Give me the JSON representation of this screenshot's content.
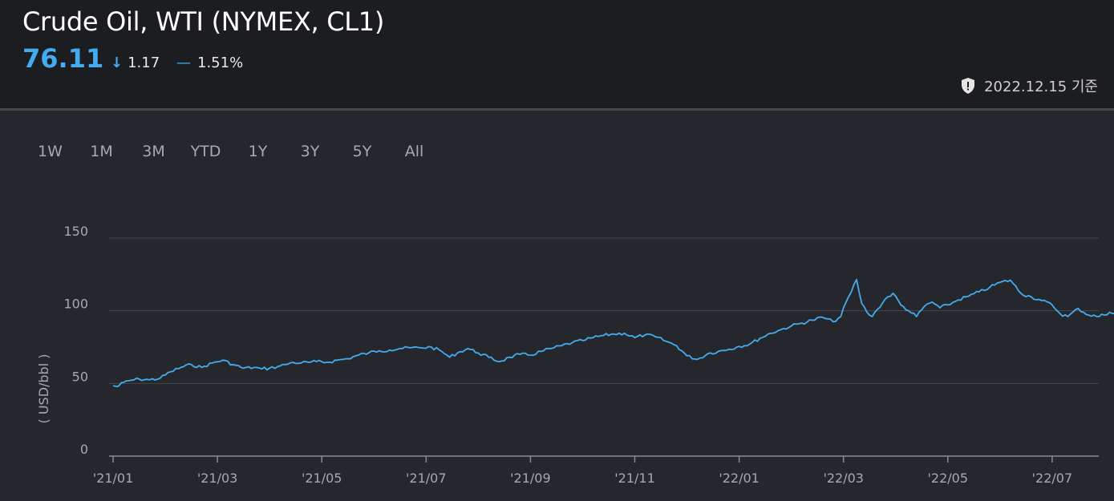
{
  "header": {
    "title": "Crude Oil, WTI (NYMEX, CL1)",
    "price": "76.11",
    "change_abs": "1.17",
    "change_pct": "1.51%",
    "as_of": "2022.12.15 기준",
    "accent_color": "#45abf0"
  },
  "ranges": [
    "1W",
    "1M",
    "3M",
    "YTD",
    "1Y",
    "3Y",
    "5Y",
    "All"
  ],
  "chart_data": {
    "type": "line",
    "ylabel": "( USD/bbl )",
    "ylim": [
      0,
      150
    ],
    "yticks": [
      0,
      50,
      100,
      150
    ],
    "xlim": [
      0,
      19.55
    ],
    "xticks": [
      {
        "label": "'21/01",
        "x": 0
      },
      {
        "label": "'21/03",
        "x": 2
      },
      {
        "label": "'21/05",
        "x": 4
      },
      {
        "label": "'21/07",
        "x": 6
      },
      {
        "label": "'21/09",
        "x": 8
      },
      {
        "label": "'21/11",
        "x": 10
      },
      {
        "label": "'22/01",
        "x": 12
      },
      {
        "label": "'22/03",
        "x": 14
      },
      {
        "label": "'22/05",
        "x": 16
      },
      {
        "label": "'22/07",
        "x": 18
      }
    ],
    "grid": true,
    "series": [
      {
        "color": "#45abf0",
        "x": [
          0,
          0.08,
          0.2,
          0.35,
          0.5,
          0.7,
          0.9,
          1.1,
          1.3,
          1.5,
          1.7,
          1.9,
          2.1,
          2.3,
          2.5,
          2.7,
          2.85,
          3.0,
          3.15,
          3.3,
          3.45,
          3.6,
          3.75,
          3.9,
          4.1,
          4.3,
          4.5,
          4.7,
          4.9,
          5.1,
          5.3,
          5.5,
          5.7,
          5.9,
          6.1,
          6.3,
          6.45,
          6.6,
          6.8,
          7.0,
          7.2,
          7.4,
          7.6,
          7.8,
          8.0,
          8.2,
          8.4,
          8.6,
          8.8,
          9.0,
          9.2,
          9.4,
          9.6,
          9.8,
          10.0,
          10.2,
          10.4,
          10.6,
          10.8,
          11.0,
          11.2,
          11.4,
          11.6,
          11.8,
          12.0,
          12.2,
          12.4,
          12.6,
          12.8,
          13.0,
          13.2,
          13.4,
          13.6,
          13.8,
          13.95,
          14.05,
          14.15,
          14.25,
          14.35,
          14.45,
          14.55,
          14.65,
          14.8,
          14.95,
          15.1,
          15.25,
          15.4,
          15.55,
          15.7,
          15.85,
          16.0,
          16.2,
          16.4,
          16.6,
          16.8,
          17.0,
          17.2,
          17.4,
          17.6,
          17.8,
          18.0,
          18.15,
          18.3,
          18.5,
          18.7,
          18.9,
          19.1,
          19.3,
          19.45,
          19.55
        ],
        "y": [
          48.4,
          47.8,
          50.7,
          52.2,
          53.0,
          52.5,
          53.5,
          58.0,
          61.0,
          63.0,
          61.0,
          64.0,
          66.0,
          63.0,
          60.5,
          61.0,
          60.0,
          60.5,
          61.5,
          63.0,
          64.5,
          64.0,
          64.5,
          65.0,
          64.5,
          66.0,
          67.0,
          69.5,
          71.0,
          72.5,
          73.0,
          74.0,
          74.5,
          74.5,
          75.0,
          72.0,
          68.0,
          71.0,
          74.0,
          71.0,
          68.0,
          65.0,
          68.0,
          70.0,
          69.5,
          72.0,
          74.0,
          76.0,
          78.0,
          79.5,
          81.5,
          83.0,
          84.0,
          84.5,
          81.5,
          83.5,
          82.0,
          79.0,
          76.0,
          69.0,
          66.5,
          70.5,
          72.0,
          73.5,
          75.5,
          77.0,
          81.0,
          84.5,
          87.0,
          89.5,
          91.5,
          93.5,
          95.5,
          92.5,
          96.0,
          106.0,
          113.0,
          121.5,
          105.0,
          99.0,
          96.0,
          101.0,
          108.0,
          112.0,
          104.0,
          100.0,
          96.0,
          103.0,
          106.0,
          102.0,
          104.0,
          107.5,
          110.0,
          113.0,
          116.0,
          119.5,
          121.0,
          112.0,
          109.5,
          107.0,
          104.0,
          98.0,
          96.0,
          101.5,
          97.0,
          96.0,
          99.0,
          96.5,
          93.0,
          88.5
        ]
      }
    ]
  }
}
